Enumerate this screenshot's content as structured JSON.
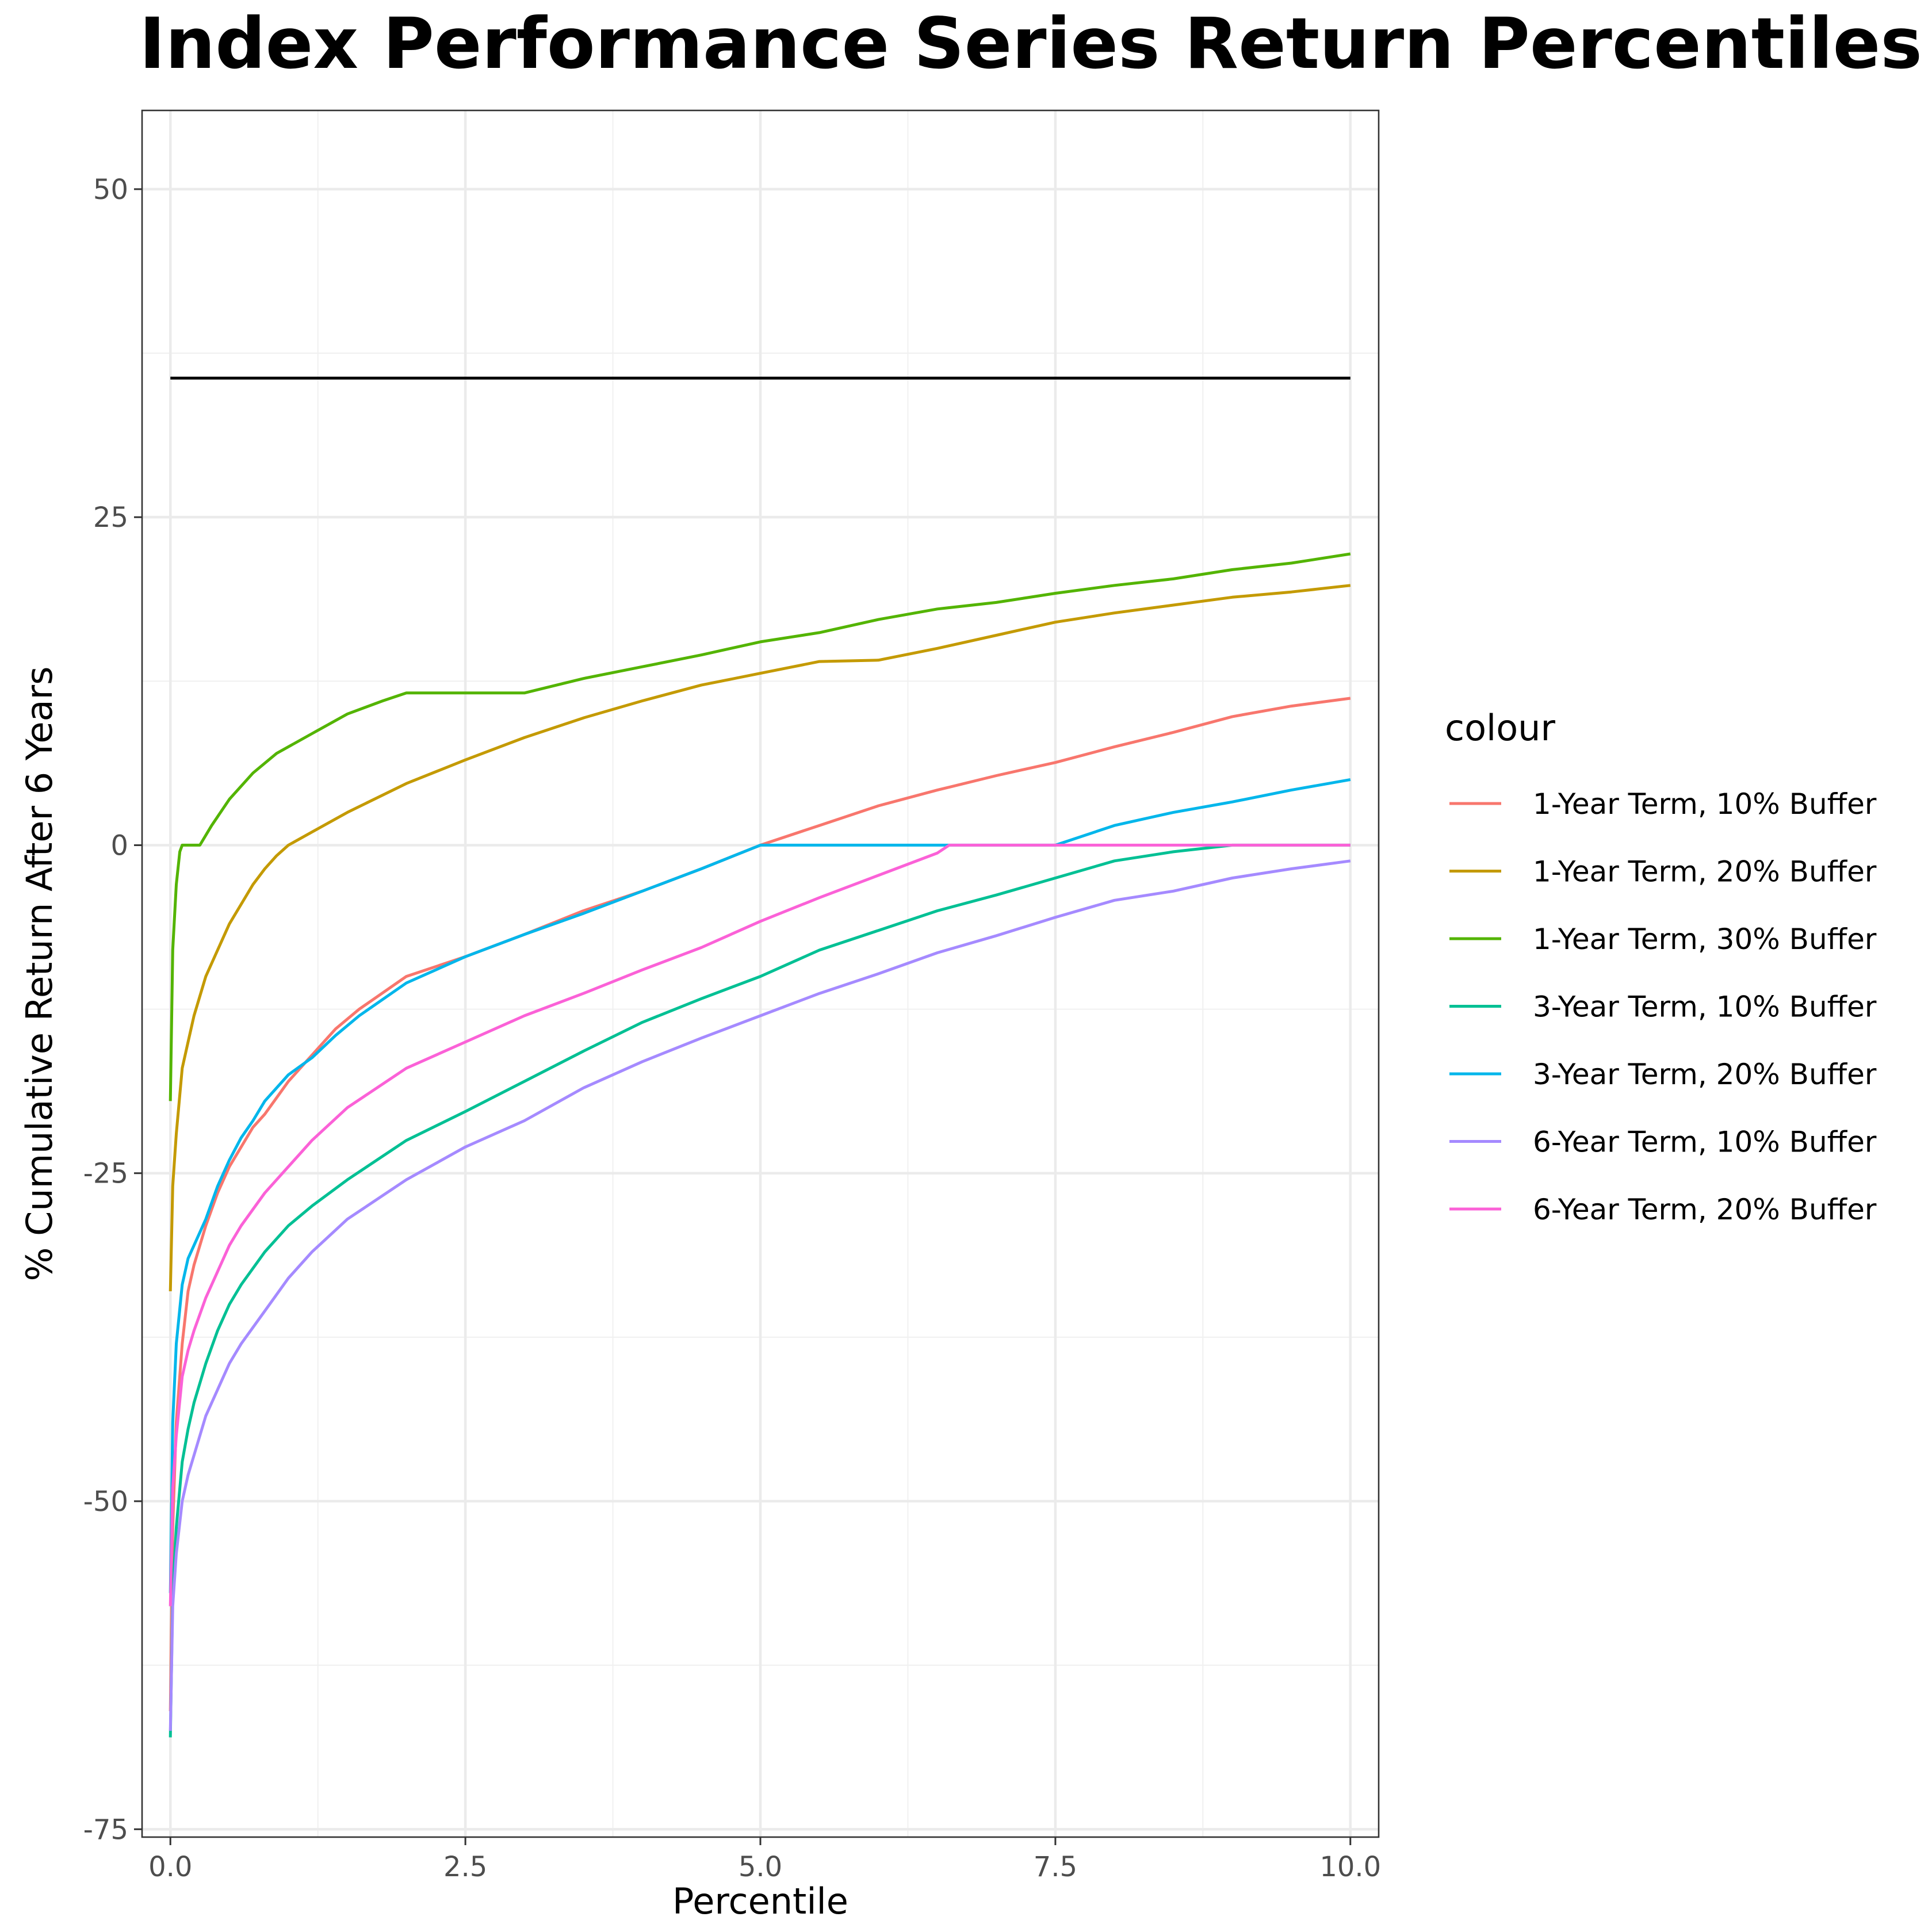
{
  "chart_data": {
    "type": "line",
    "title": "Index Performance Series Return Percentiles",
    "xlabel": "Percentile",
    "ylabel": "% Cumulative Return After 6 Years",
    "xlim": [
      -0.24,
      10.24
    ],
    "ylim": [
      -75.6,
      56
    ],
    "x_ticks": [
      0,
      2.5,
      5,
      7.5,
      10
    ],
    "x_tick_labels": [
      "0.0",
      "2.5",
      "5.0",
      "7.5",
      "10.0"
    ],
    "y_ticks": [
      50,
      25,
      0,
      -25,
      -50,
      -75
    ],
    "y_tick_labels": [
      "50",
      "25",
      "0",
      "-25",
      "-50",
      "-75"
    ],
    "grid": true,
    "legend_title": "colour",
    "legend_position": "right",
    "reference_line": {
      "y": 35.6,
      "x": [
        0,
        10
      ],
      "color": "#000000"
    },
    "series": [
      {
        "name": "1-Year Term, 10% Buffer",
        "color": "#F8766D",
        "x": [
          0,
          0.02,
          0.05,
          0.1,
          0.15,
          0.2,
          0.3,
          0.4,
          0.5,
          0.6,
          0.7,
          0.8,
          1.0,
          1.2,
          1.4,
          1.6,
          2.0,
          2.5,
          3.0,
          3.5,
          4.0,
          4.5,
          5.0,
          5.5,
          6.0,
          6.5,
          7.0,
          7.5,
          8.0,
          8.5,
          9.0,
          9.5,
          10.0
        ],
        "y": [
          -66,
          -52,
          -44,
          -38,
          -34,
          -32,
          -29,
          -26.5,
          -24.5,
          -23,
          -21.5,
          -20.5,
          -18,
          -16,
          -14,
          -12.5,
          -10,
          -8.5,
          -6.8,
          -5,
          -3.5,
          -1.8,
          0,
          1.5,
          3,
          4.2,
          5.3,
          6.3,
          7.5,
          8.6,
          9.8,
          10.6,
          11.2
        ]
      },
      {
        "name": "1-Year Term, 20% Buffer",
        "color": "#C49A00",
        "x": [
          0,
          0.02,
          0.05,
          0.1,
          0.15,
          0.2,
          0.3,
          0.4,
          0.5,
          0.6,
          0.7,
          0.8,
          0.9,
          1.0,
          1.2,
          1.5,
          2.0,
          2.5,
          3.0,
          3.5,
          4.0,
          4.5,
          5.0,
          5.5,
          6.0,
          6.5,
          7.0,
          7.5,
          8.0,
          8.5,
          9.0,
          9.5,
          10.0
        ],
        "y": [
          -34,
          -26,
          -22,
          -17,
          -15,
          -13,
          -10,
          -8,
          -6,
          -4.5,
          -3,
          -1.8,
          -0.8,
          0,
          1,
          2.5,
          4.7,
          6.5,
          8.2,
          9.7,
          11,
          12.2,
          13.1,
          14,
          14.1,
          15,
          16,
          17,
          17.7,
          18.3,
          18.9,
          19.3,
          19.8
        ]
      },
      {
        "name": "1-Year Term, 30% Buffer",
        "color": "#53B400",
        "x": [
          0,
          0.02,
          0.05,
          0.08,
          0.1,
          0.25,
          0.35,
          0.5,
          0.7,
          0.9,
          1.2,
          1.5,
          1.8,
          2.0,
          2.5,
          3.0,
          3.5,
          4.0,
          4.5,
          5.0,
          5.5,
          6.0,
          6.5,
          7.0,
          7.5,
          8.0,
          8.5,
          9.0,
          9.5,
          10.0
        ],
        "y": [
          -19.5,
          -8,
          -3,
          -0.5,
          0,
          0,
          1.5,
          3.5,
          5.5,
          7,
          8.5,
          10,
          11,
          11.6,
          11.6,
          11.6,
          12.7,
          13.6,
          14.5,
          15.5,
          16.2,
          17.2,
          18,
          18.5,
          19.2,
          19.8,
          20.3,
          21,
          21.5,
          22.2
        ]
      },
      {
        "name": "3-Year Term, 10% Buffer",
        "color": "#00C094",
        "x": [
          0,
          0.02,
          0.05,
          0.1,
          0.15,
          0.2,
          0.3,
          0.4,
          0.5,
          0.6,
          0.8,
          1.0,
          1.2,
          1.5,
          2.0,
          2.5,
          3.0,
          3.5,
          4.0,
          4.5,
          5.0,
          5.5,
          6.0,
          6.5,
          7.0,
          7.5,
          8.0,
          8.5,
          9.0,
          9.2,
          9.5,
          10.0
        ],
        "y": [
          -68,
          -57,
          -52,
          -47,
          -44.5,
          -42.5,
          -39.5,
          -37,
          -35,
          -33.5,
          -31,
          -29,
          -27.5,
          -25.5,
          -22.5,
          -20.3,
          -18,
          -15.7,
          -13.5,
          -11.7,
          -10,
          -8,
          -6.5,
          -5,
          -3.8,
          -2.5,
          -1.2,
          -0.5,
          0,
          0,
          0,
          0
        ]
      },
      {
        "name": "3-Year Term, 20% Buffer",
        "color": "#00B6EB",
        "x": [
          0,
          0.02,
          0.05,
          0.1,
          0.15,
          0.2,
          0.3,
          0.4,
          0.5,
          0.6,
          0.7,
          0.8,
          1.0,
          1.2,
          1.4,
          1.6,
          2.0,
          2.5,
          3.0,
          3.5,
          4.0,
          4.5,
          5.0,
          5.2,
          6.0,
          7.0,
          7.5,
          8.0,
          8.5,
          9.0,
          9.5,
          10.0
        ],
        "y": [
          -57,
          -44,
          -38,
          -33.5,
          -31.5,
          -30.5,
          -28.5,
          -26,
          -24,
          -22.3,
          -21,
          -19.5,
          -17.5,
          -16.2,
          -14.5,
          -13,
          -10.5,
          -8.5,
          -6.8,
          -5.2,
          -3.5,
          -1.8,
          0,
          0,
          0,
          0,
          0,
          1.5,
          2.5,
          3.3,
          4.2,
          5
        ]
      },
      {
        "name": "6-Year Term, 10% Buffer",
        "color": "#A58AFF",
        "x": [
          0,
          0.02,
          0.05,
          0.1,
          0.15,
          0.2,
          0.3,
          0.4,
          0.5,
          0.6,
          0.8,
          1.0,
          1.2,
          1.5,
          2.0,
          2.5,
          3.0,
          3.5,
          4.0,
          4.5,
          5.0,
          5.5,
          6.0,
          6.5,
          7.0,
          7.5,
          8.0,
          8.5,
          9.0,
          9.5,
          10.0
        ],
        "y": [
          -67.5,
          -58,
          -54,
          -50,
          -48,
          -46.5,
          -43.5,
          -41.5,
          -39.5,
          -38,
          -35.5,
          -33,
          -31,
          -28.5,
          -25.5,
          -23,
          -21,
          -18.5,
          -16.5,
          -14.7,
          -13,
          -11.3,
          -9.8,
          -8.2,
          -6.9,
          -5.5,
          -4.2,
          -3.5,
          -2.5,
          -1.8,
          -1.2
        ]
      },
      {
        "name": "6-Year Term, 20% Buffer",
        "color": "#FB61D7",
        "x": [
          0,
          0.02,
          0.05,
          0.1,
          0.15,
          0.2,
          0.3,
          0.4,
          0.5,
          0.6,
          0.8,
          1.0,
          1.2,
          1.5,
          2.0,
          2.5,
          3.0,
          3.5,
          4.0,
          4.5,
          5.0,
          5.5,
          6.0,
          6.5,
          6.6,
          7.5,
          8.5,
          9.5,
          10.0
        ],
        "y": [
          -58,
          -49,
          -45,
          -40.5,
          -38.5,
          -37,
          -34.5,
          -32.5,
          -30.5,
          -29,
          -26.5,
          -24.5,
          -22.5,
          -20,
          -17,
          -15,
          -13,
          -11.3,
          -9.5,
          -7.8,
          -5.8,
          -4,
          -2.3,
          -0.6,
          0,
          0,
          0,
          0,
          0
        ]
      }
    ]
  }
}
